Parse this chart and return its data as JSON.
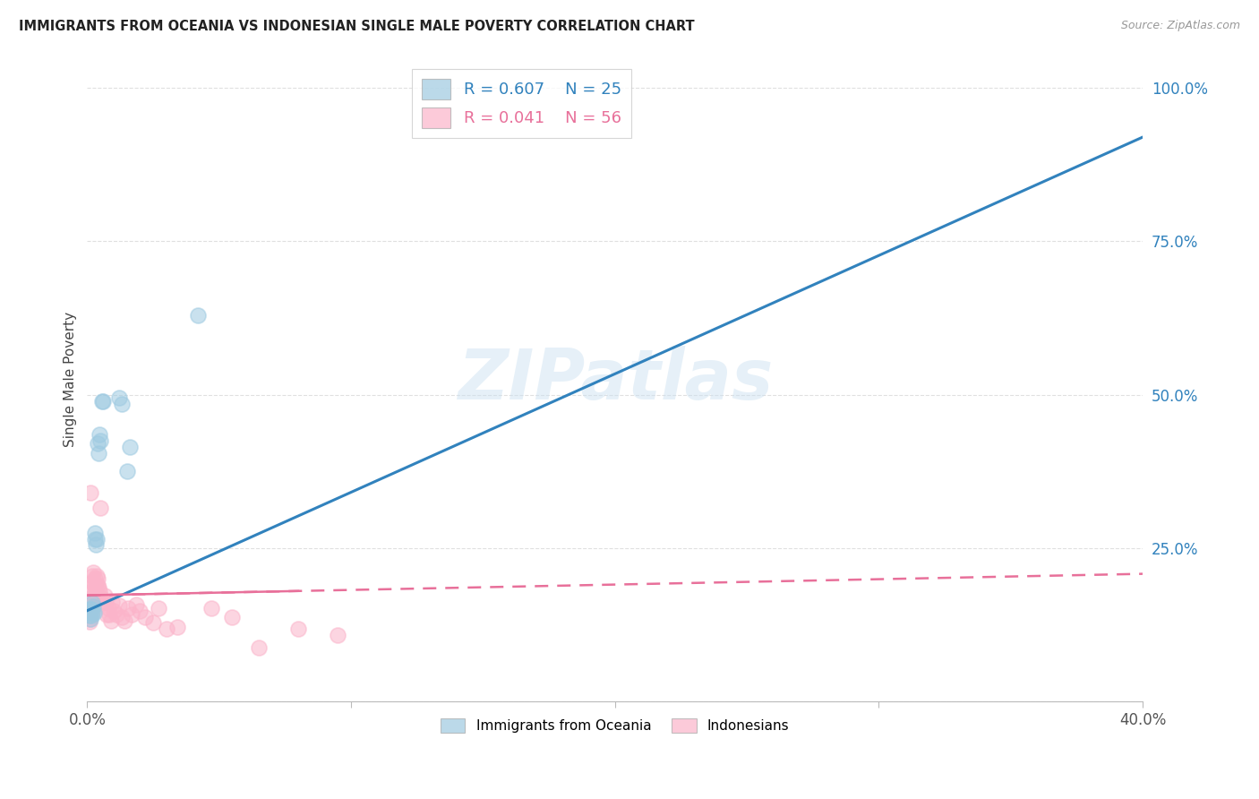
{
  "title": "IMMIGRANTS FROM OCEANIA VS INDONESIAN SINGLE MALE POVERTY CORRELATION CHART",
  "source": "Source: ZipAtlas.com",
  "ylabel": "Single Male Poverty",
  "background_color": "#ffffff",
  "grid_color": "#dddddd",
  "watermark": "ZIPatlas",
  "oceania_color": "#9ecae1",
  "indonesian_color": "#fbb4ca",
  "oceania_line_color": "#3182bd",
  "indonesian_line_color": "#e8709a",
  "legend_oceania_R": "R = 0.607",
  "legend_oceania_N": "N = 25",
  "legend_indonesian_R": "R = 0.041",
  "legend_indonesian_N": "N = 56",
  "legend_label_oceania": "Immigrants from Oceania",
  "legend_label_indonesian": "Indonesians",
  "oceania_x": [
    0.0008,
    0.001,
    0.0012,
    0.0013,
    0.0015,
    0.0017,
    0.0018,
    0.002,
    0.0022,
    0.0025,
    0.0028,
    0.003,
    0.0033,
    0.0035,
    0.0038,
    0.0042,
    0.0045,
    0.005,
    0.0055,
    0.006,
    0.012,
    0.013,
    0.015,
    0.016,
    0.042
  ],
  "oceania_y": [
    0.145,
    0.14,
    0.15,
    0.135,
    0.14,
    0.15,
    0.145,
    0.16,
    0.155,
    0.145,
    0.265,
    0.275,
    0.255,
    0.265,
    0.42,
    0.405,
    0.435,
    0.425,
    0.49,
    0.49,
    0.495,
    0.485,
    0.375,
    0.415,
    0.63
  ],
  "indonesian_x": [
    0.0005,
    0.0006,
    0.0007,
    0.0008,
    0.0009,
    0.001,
    0.0011,
    0.0012,
    0.0013,
    0.0014,
    0.0015,
    0.0016,
    0.0017,
    0.0018,
    0.002,
    0.0022,
    0.0024,
    0.0026,
    0.0028,
    0.003,
    0.0032,
    0.0034,
    0.0036,
    0.0038,
    0.004,
    0.0043,
    0.0046,
    0.005,
    0.0055,
    0.006,
    0.0065,
    0.007,
    0.0075,
    0.008,
    0.0085,
    0.009,
    0.0095,
    0.01,
    0.011,
    0.012,
    0.013,
    0.014,
    0.0155,
    0.017,
    0.0185,
    0.02,
    0.022,
    0.025,
    0.027,
    0.03,
    0.034,
    0.047,
    0.055,
    0.065,
    0.08,
    0.095
  ],
  "indonesian_y": [
    0.15,
    0.14,
    0.145,
    0.13,
    0.15,
    0.135,
    0.145,
    0.16,
    0.34,
    0.155,
    0.165,
    0.18,
    0.17,
    0.195,
    0.205,
    0.155,
    0.21,
    0.19,
    0.2,
    0.18,
    0.17,
    0.19,
    0.205,
    0.19,
    0.2,
    0.185,
    0.18,
    0.315,
    0.168,
    0.162,
    0.172,
    0.162,
    0.142,
    0.152,
    0.142,
    0.132,
    0.162,
    0.148,
    0.142,
    0.157,
    0.138,
    0.132,
    0.152,
    0.142,
    0.158,
    0.148,
    0.138,
    0.128,
    0.152,
    0.118,
    0.122,
    0.152,
    0.137,
    0.088,
    0.118,
    0.108
  ],
  "blue_line_x": [
    0.0,
    0.4
  ],
  "blue_line_y": [
    0.148,
    0.92
  ],
  "pink_line_x": [
    0.0,
    0.4
  ],
  "pink_line_y": [
    0.173,
    0.208
  ],
  "xlim": [
    0.0,
    0.4
  ],
  "ylim": [
    0.0,
    1.05
  ],
  "xticks": [
    0.0,
    0.1,
    0.2,
    0.3,
    0.4
  ],
  "xtick_labels": [
    "0.0%",
    "",
    "",
    "",
    "40.0%"
  ],
  "yticks": [
    0.0,
    0.25,
    0.5,
    0.75,
    1.0
  ],
  "ytick_labels": [
    "",
    "25.0%",
    "50.0%",
    "75.0%",
    "100.0%"
  ]
}
